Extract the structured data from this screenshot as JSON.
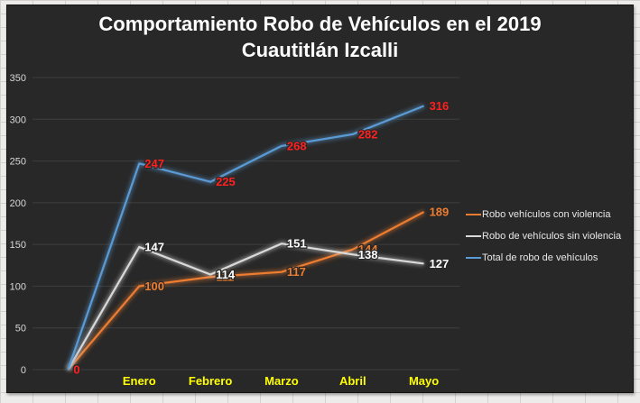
{
  "chart_data": {
    "type": "line",
    "title": "Comportamiento Robo de Vehículos en el 2019",
    "subtitle": "Cuautitlán Izcalli",
    "categories": [
      "",
      "Enero",
      "Febrero",
      "Marzo",
      "Abril",
      "Mayo"
    ],
    "series": [
      {
        "name": "Robo vehículos con violencia",
        "color": "#ED7D31",
        "label_color": "#ED7D31",
        "values": [
          0,
          100,
          111,
          117,
          144,
          189
        ]
      },
      {
        "name": "Robo de vehículos sin violencia",
        "color": "#D9D9D9",
        "label_color": "#FFFFFF",
        "values": [
          0,
          147,
          114,
          151,
          138,
          127
        ]
      },
      {
        "name": "Total de robo de vehículos",
        "color": "#5B9BD5",
        "label_color": "#FF2020",
        "values": [
          0,
          247,
          225,
          268,
          282,
          316
        ]
      }
    ],
    "yticks": [
      0,
      50,
      100,
      150,
      200,
      250,
      300,
      350
    ],
    "ylim": [
      0,
      350
    ],
    "grid": true,
    "legend_position": "right",
    "colors": {
      "chart_background": "#282828",
      "gridline": "#3e3e3e",
      "ytick_text": "#d8d8d8",
      "xtick_text": "#FFFF00",
      "title_text": "#FFFFFF",
      "legend_text": "#E8E8E8",
      "sheet_background": "#EDECEA",
      "sheet_gridline": "#D2D1CF"
    }
  }
}
